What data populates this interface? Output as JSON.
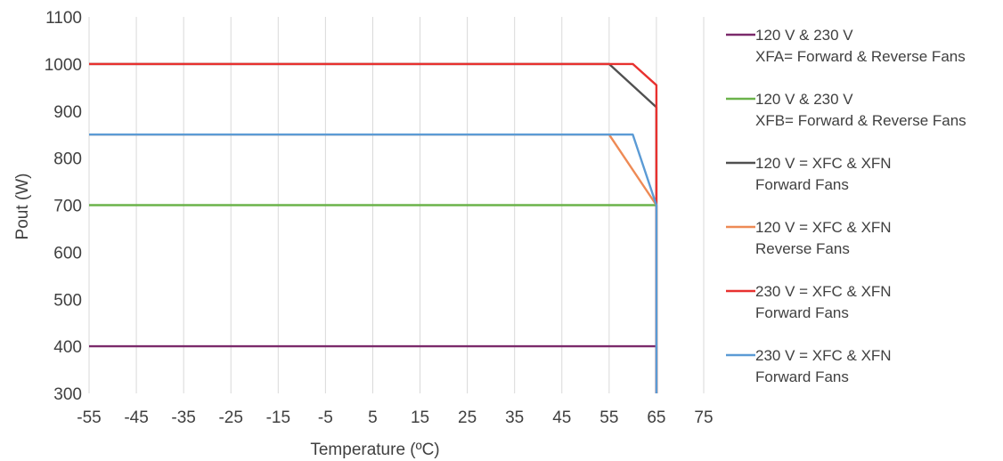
{
  "chart_data": {
    "type": "line",
    "xlabel": "Temperature (ºC)",
    "ylabel": "Pout (W)",
    "xlim": [
      -55,
      75
    ],
    "ylim": [
      300,
      1100
    ],
    "x_ticks": [
      -55,
      -45,
      -35,
      -25,
      -15,
      -5,
      5,
      15,
      25,
      35,
      45,
      55,
      65,
      75
    ],
    "y_ticks": [
      300,
      400,
      500,
      600,
      700,
      800,
      900,
      1000,
      1100
    ],
    "grid": {
      "vertical": true,
      "horizontal": false
    },
    "legend_position": "right",
    "series": [
      {
        "name": "120 V & 230 V\nXFA= Forward & Reverse Fans",
        "color": "#7b2a6b",
        "points": [
          [
            -55,
            400
          ],
          [
            65,
            400
          ],
          [
            65,
            300
          ]
        ]
      },
      {
        "name": "120 V & 230 V\nXFB= Forward & Reverse Fans",
        "color": "#6bb34a",
        "points": [
          [
            -55,
            700
          ],
          [
            65,
            700
          ],
          [
            65,
            300
          ]
        ]
      },
      {
        "name": "120 V = XFC & XFN\nForward Fans",
        "color": "#505050",
        "points": [
          [
            -55,
            1000
          ],
          [
            55,
            1000
          ],
          [
            65,
            908
          ],
          [
            65,
            300
          ]
        ]
      },
      {
        "name": "120 V = XFC & XFN\nReverse Fans",
        "color": "#ee8a55",
        "points": [
          [
            -55,
            850
          ],
          [
            55,
            850
          ],
          [
            65,
            700
          ],
          [
            65,
            300
          ]
        ]
      },
      {
        "name": "230 V = XFC & XFN\nForward Fans",
        "color": "#e8312f",
        "points": [
          [
            -55,
            1000
          ],
          [
            60,
            1000
          ],
          [
            65,
            955
          ],
          [
            65,
            300
          ]
        ]
      },
      {
        "name": "230 V = XFC & XFN\nForward Fans",
        "color": "#5b9bd5",
        "points": [
          [
            -55,
            850
          ],
          [
            60,
            850
          ],
          [
            65,
            700
          ],
          [
            65,
            300
          ]
        ]
      }
    ]
  }
}
